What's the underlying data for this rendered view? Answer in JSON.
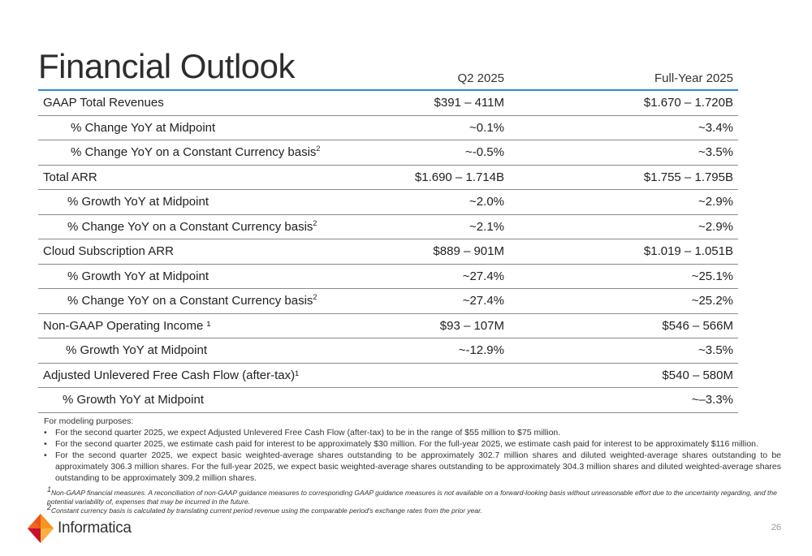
{
  "title": "Financial Outlook",
  "columns": [
    "",
    "Q2 2025",
    "Full-Year 2025"
  ],
  "rows": [
    {
      "label": "GAAP Total Revenues",
      "sup": "",
      "q2": "$391 – 411M",
      "fy": "$1.670 – 1.720B",
      "indent": 0
    },
    {
      "label": "%  Change YoY at Midpoint",
      "sup": "",
      "q2": "~0.1%",
      "fy": "~3.4%",
      "indent": 1
    },
    {
      "label": "%  Change YoY on a Constant Currency basis",
      "sup": "2",
      "q2": "~-0.5%",
      "fy": "~3.5%",
      "indent": 1
    },
    {
      "label": "Total ARR",
      "sup": "",
      "q2": "$1.690 – 1.714B",
      "fy": "$1.755 – 1.795B",
      "indent": 0
    },
    {
      "label": "%  Growth YoY at Midpoint",
      "sup": "",
      "q2": "~2.0%",
      "fy": "~2.9%",
      "indent": 2
    },
    {
      "label": "%  Change YoY on a Constant Currency basis",
      "sup": "2",
      "q2": "~2.1%",
      "fy": "~2.9%",
      "indent": 2
    },
    {
      "label": "Cloud Subscription ARR",
      "sup": "",
      "q2": "$889 – 901M",
      "fy": "$1.019 – 1.051B",
      "indent": 0
    },
    {
      "label": "% Growth YoY at Midpoint",
      "sup": "",
      "q2": "~27.4%",
      "fy": "~25.1%",
      "indent": 2
    },
    {
      "label": "%  Change YoY on a Constant Currency basis",
      "sup": "2",
      "q2": "~27.4%",
      "fy": "~25.2%",
      "indent": 2
    },
    {
      "label": "Non-GAAP Operating Income ¹",
      "sup": "",
      "q2": "$93 – 107M",
      "fy": "$546 – 566M",
      "indent": 0
    },
    {
      "label": "% Growth YoY at Midpoint",
      "sup": "",
      "q2": "~-12.9%",
      "fy": "~3.5%",
      "indent": 3
    },
    {
      "label": "Adjusted Unlevered Free Cash Flow (after-tax)¹",
      "sup": "",
      "q2": "",
      "fy": "$540 – 580M",
      "indent": 0
    },
    {
      "label": "% Growth YoY at Midpoint",
      "sup": "",
      "q2": "",
      "fy": "~–3.3%",
      "indent": 4
    }
  ],
  "notes": {
    "heading": "For modeling purposes:",
    "bullet": "•",
    "items": [
      "For the second quarter 2025, we expect Adjusted Unlevered Free Cash Flow (after-tax) to be in the range of $55 million to $75 million.",
      "For the second quarter 2025, we estimate cash paid for interest to be approximately $30 million. For the full-year 2025, we estimate cash paid for interest to be approximately $116 million.",
      "For the second quarter 2025, we expect basic weighted-average shares outstanding to be approximately 302.7 million shares and diluted weighted-average shares outstanding to be approximately 306.3 million shares. For the full-year 2025, we expect basic weighted-average shares outstanding to be approximately 304.3 million shares and diluted weighted-average shares outstanding to be approximately 309.2 million shares."
    ]
  },
  "footnotes": [
    {
      "mark": "1",
      "text": "Non-GAAP financial measures. A reconciliation of non-GAAP guidance measures to corresponding GAAP guidance measures is not available on a forward-looking basis without unreasonable effort due to the uncertainty regarding, and the potential variability of, expenses that may be incurred in the future."
    },
    {
      "mark": "2",
      "text": "Constant currency basis is calculated by translating current period revenue using the comparable period's exchange rates from the prior year."
    }
  ],
  "logo": {
    "text": "Informatica",
    "icon": "informatica-diamond-logo-icon",
    "colors": [
      "#f7941d",
      "#e8561e",
      "#c8102e",
      "#fbb040"
    ]
  },
  "page_number": "26",
  "colors": {
    "header_rule": "#2a8fd0",
    "row_rule": "#8a8a8a",
    "title": "#2d2d2d"
  }
}
